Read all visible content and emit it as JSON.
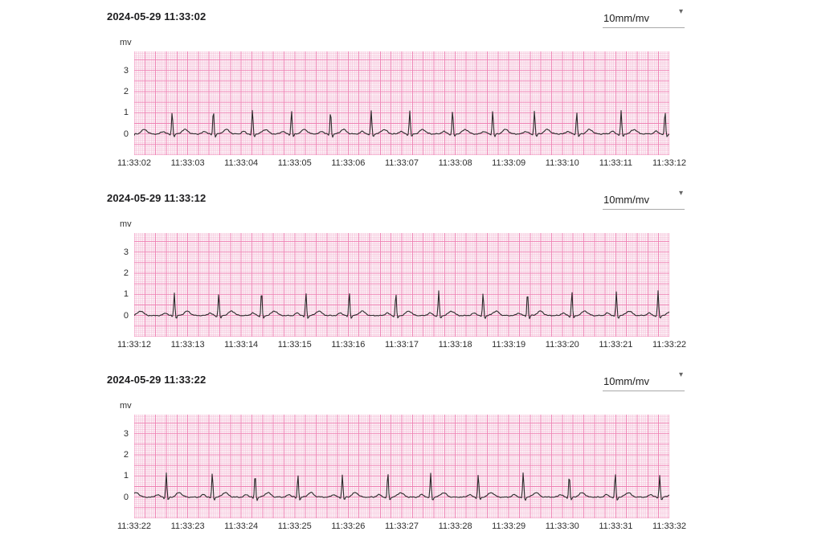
{
  "page": {
    "background": "#ffffff"
  },
  "icons": {
    "dropdown_caret": "▾"
  },
  "chart_data": [
    {
      "type": "line",
      "title": "2024-05-29 11:33:02",
      "scale_label": "10mm/mv",
      "y_unit": "mv",
      "y_ticks": [
        0,
        1,
        2,
        3
      ],
      "ylim": [
        -1.0,
        3.9
      ],
      "duration_s": 10,
      "x_ticks": [
        "11:33:02",
        "11:33:03",
        "11:33:04",
        "11:33:05",
        "11:33:06",
        "11:33:07",
        "11:33:08",
        "11:33:09",
        "11:33:10",
        "11:33:11",
        "11:33:12"
      ],
      "beats_s": [
        -0.05,
        0.71,
        1.48,
        2.21,
        2.94,
        3.67,
        4.43,
        5.15,
        5.95,
        6.7,
        7.48,
        8.27,
        9.1,
        9.92
      ],
      "amplitudes_mv": {
        "p": 0.12,
        "q": -0.06,
        "r": 1.08,
        "s": -0.14,
        "t": 0.21
      },
      "trace_color": "#2b2b2b",
      "grid": {
        "background": "#fdf2f7",
        "minor_color": "#f5c1da",
        "major_color": "#ee7fb2",
        "minor_step": {
          "s": 0.04,
          "mv": 0.1
        },
        "major_step": {
          "s": 0.2,
          "mv": 0.5
        }
      }
    },
    {
      "type": "line",
      "title": "2024-05-29 11:33:12",
      "scale_label": "10mm/mv",
      "y_unit": "mv",
      "y_ticks": [
        0,
        1,
        2,
        3
      ],
      "ylim": [
        -1.0,
        3.9
      ],
      "duration_s": 10,
      "x_ticks": [
        "11:33:12",
        "11:33:13",
        "11:33:14",
        "11:33:15",
        "11:33:16",
        "11:33:17",
        "11:33:18",
        "11:33:19",
        "11:33:20",
        "11:33:21",
        "11:33:22"
      ],
      "beats_s": [
        -0.12,
        0.75,
        1.58,
        2.38,
        3.21,
        4.02,
        4.89,
        5.69,
        6.52,
        7.35,
        8.18,
        9.01,
        9.79
      ],
      "amplitudes_mv": {
        "p": 0.12,
        "q": -0.06,
        "r": 1.08,
        "s": -0.14,
        "t": 0.21
      },
      "trace_color": "#2b2b2b",
      "grid": {
        "background": "#fdf2f7",
        "minor_color": "#f5c1da",
        "major_color": "#ee7fb2",
        "minor_step": {
          "s": 0.04,
          "mv": 0.1
        },
        "major_step": {
          "s": 0.2,
          "mv": 0.5
        }
      }
    },
    {
      "type": "line",
      "title": "2024-05-29 11:33:22",
      "scale_label": "10mm/mv",
      "y_unit": "mv",
      "y_ticks": [
        0,
        1,
        2,
        3
      ],
      "ylim": [
        -1.0,
        3.9
      ],
      "duration_s": 10,
      "x_ticks": [
        "11:33:22",
        "11:33:23",
        "11:33:24",
        "11:33:25",
        "11:33:26",
        "11:33:27",
        "11:33:28",
        "11:33:29",
        "11:33:30",
        "11:33:31",
        "11:33:32"
      ],
      "beats_s": [
        -0.2,
        0.6,
        1.46,
        2.26,
        3.06,
        3.89,
        4.74,
        5.54,
        6.43,
        7.27,
        8.13,
        8.99,
        9.82
      ],
      "amplitudes_mv": {
        "p": 0.12,
        "q": -0.06,
        "r": 1.08,
        "s": -0.14,
        "t": 0.21
      },
      "trace_color": "#2b2b2b",
      "grid": {
        "background": "#fdf2f7",
        "minor_color": "#f5c1da",
        "major_color": "#ee7fb2",
        "minor_step": {
          "s": 0.04,
          "mv": 0.1
        },
        "major_step": {
          "s": 0.2,
          "mv": 0.5
        }
      }
    }
  ]
}
